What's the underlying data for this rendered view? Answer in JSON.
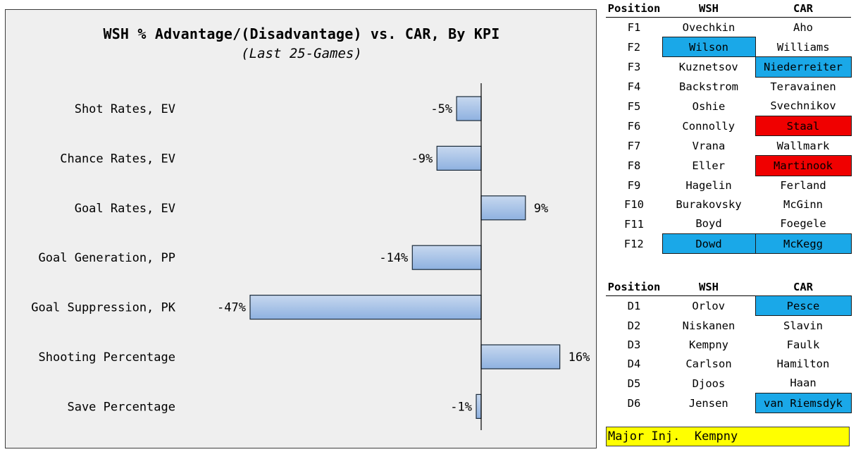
{
  "chart_data": {
    "type": "bar",
    "orientation": "horizontal",
    "title": "WSH % Advantage/(Disadvantage) vs. CAR, By KPI",
    "subtitle": "(Last 25-Games)",
    "categories": [
      "Shot Rates, EV",
      "Chance Rates, EV",
      "Goal Rates, EV",
      "Goal Generation, PP",
      "Goal Suppression, PK",
      "Shooting Percentage",
      "Save Percentage"
    ],
    "values": [
      -5,
      -9,
      9,
      -14,
      -47,
      16,
      -1
    ],
    "value_labels": [
      "-5%",
      "-9%",
      "9%",
      "-14%",
      "-47%",
      "16%",
      "-1%"
    ],
    "xlim": [
      -47,
      16
    ],
    "grid": false,
    "colors": {
      "bar_fill_top": "#c7d8ef",
      "bar_fill_bottom": "#8eb1e0",
      "bar_stroke": "#1a2a3a",
      "panel": "#efefef"
    }
  },
  "forwards": {
    "headers": [
      "Position",
      "WSH",
      "CAR"
    ],
    "rows": [
      {
        "pos": "F1",
        "wsh": "Ovechkin",
        "car": "Aho",
        "wsh_hl": "",
        "car_hl": ""
      },
      {
        "pos": "F2",
        "wsh": "Wilson",
        "car": "Williams",
        "wsh_hl": "blue",
        "car_hl": ""
      },
      {
        "pos": "F3",
        "wsh": "Kuznetsov",
        "car": "Niederreiter",
        "wsh_hl": "",
        "car_hl": "blue"
      },
      {
        "pos": "F4",
        "wsh": "Backstrom",
        "car": "Teravainen",
        "wsh_hl": "",
        "car_hl": ""
      },
      {
        "pos": "F5",
        "wsh": "Oshie",
        "car": "Svechnikov",
        "wsh_hl": "",
        "car_hl": ""
      },
      {
        "pos": "F6",
        "wsh": "Connolly",
        "car": "Staal",
        "wsh_hl": "",
        "car_hl": "red"
      },
      {
        "pos": "F7",
        "wsh": "Vrana",
        "car": "Wallmark",
        "wsh_hl": "",
        "car_hl": ""
      },
      {
        "pos": "F8",
        "wsh": "Eller",
        "car": "Martinook",
        "wsh_hl": "",
        "car_hl": "red"
      },
      {
        "pos": "F9",
        "wsh": "Hagelin",
        "car": "Ferland",
        "wsh_hl": "",
        "car_hl": ""
      },
      {
        "pos": "F10",
        "wsh": "Burakovsky",
        "car": "McGinn",
        "wsh_hl": "",
        "car_hl": ""
      },
      {
        "pos": "F11",
        "wsh": "Boyd",
        "car": "Foegele",
        "wsh_hl": "",
        "car_hl": ""
      },
      {
        "pos": "F12",
        "wsh": "Dowd",
        "car": "McKegg",
        "wsh_hl": "blue",
        "car_hl": "blue"
      }
    ]
  },
  "defense": {
    "headers": [
      "Position",
      "WSH",
      "CAR"
    ],
    "rows": [
      {
        "pos": "D1",
        "wsh": "Orlov",
        "car": "Pesce",
        "wsh_hl": "",
        "car_hl": "blue"
      },
      {
        "pos": "D2",
        "wsh": "Niskanen",
        "car": "Slavin",
        "wsh_hl": "",
        "car_hl": ""
      },
      {
        "pos": "D3",
        "wsh": "Kempny",
        "car": "Faulk",
        "wsh_hl": "",
        "car_hl": ""
      },
      {
        "pos": "D4",
        "wsh": "Carlson",
        "car": "Hamilton",
        "wsh_hl": "",
        "car_hl": ""
      },
      {
        "pos": "D5",
        "wsh": "Djoos",
        "car": "Haan",
        "wsh_hl": "",
        "car_hl": ""
      },
      {
        "pos": "D6",
        "wsh": "Jensen",
        "car": "van Riemsdyk",
        "wsh_hl": "",
        "car_hl": "blue"
      }
    ]
  },
  "injury": {
    "label": "Major Inj.",
    "player": "Kempny",
    "color": "#ffff00"
  },
  "highlight_colors": {
    "blue": "#1aa8e8",
    "red": "#f00000"
  }
}
